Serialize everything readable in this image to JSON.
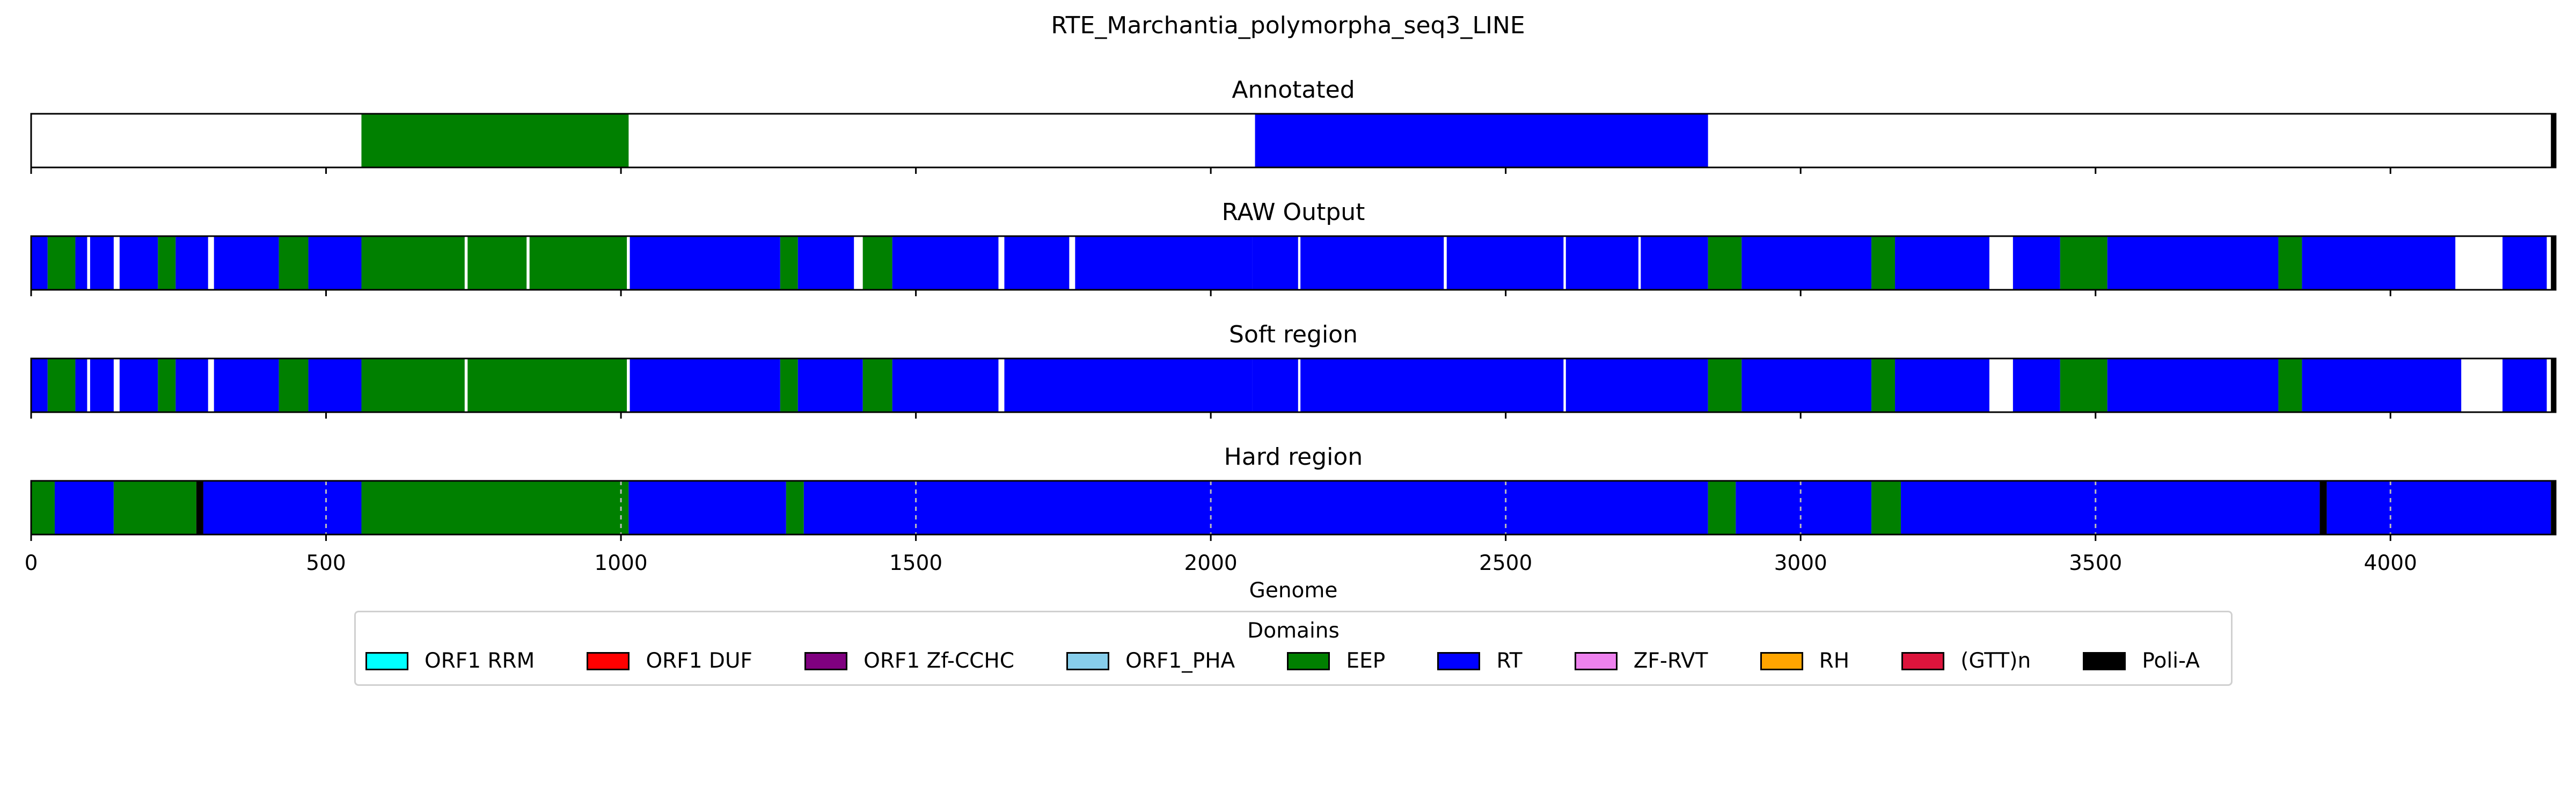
{
  "chart_data": {
    "type": "track",
    "title": "RTE_Marchantia_polymorpha_seq3_LINE",
    "xlabel": "Genome",
    "xlim": [
      0,
      4280
    ],
    "xticks": [
      0,
      500,
      1000,
      1500,
      2000,
      2500,
      3000,
      3500,
      4000
    ],
    "colors": {
      "ORF1 RRM": "#00ffff",
      "ORF1 DUF": "#ff0000",
      "ORF1 Zf-CCHC": "#800080",
      "ORF1_PHA": "#87ceeb",
      "EEP": "#008000",
      "RT": "#0000ff",
      "ZF-RVT": "#ee82ee",
      "RH": "#ffa500",
      "(GTT)n": "#dc143c",
      "Poli-A": "#000000"
    },
    "panels": [
      {
        "title": "Annotated",
        "segments": [
          {
            "start": 560,
            "end": 1013,
            "label": "EEP"
          },
          {
            "start": 2075,
            "end": 2843,
            "label": "RT"
          },
          {
            "start": 4272,
            "end": 4280,
            "label": "Poli-A"
          }
        ]
      },
      {
        "title": "RAW Output",
        "segments": [
          {
            "start": 0,
            "end": 28,
            "label": "RT"
          },
          {
            "start": 28,
            "end": 75,
            "label": "EEP"
          },
          {
            "start": 75,
            "end": 95,
            "label": "RT"
          },
          {
            "start": 100,
            "end": 140,
            "label": "RT"
          },
          {
            "start": 150,
            "end": 215,
            "label": "RT"
          },
          {
            "start": 215,
            "end": 245,
            "label": "EEP"
          },
          {
            "start": 245,
            "end": 300,
            "label": "RT"
          },
          {
            "start": 310,
            "end": 420,
            "label": "RT"
          },
          {
            "start": 420,
            "end": 470,
            "label": "EEP"
          },
          {
            "start": 470,
            "end": 560,
            "label": "RT"
          },
          {
            "start": 560,
            "end": 735,
            "label": "EEP"
          },
          {
            "start": 740,
            "end": 840,
            "label": "EEP"
          },
          {
            "start": 845,
            "end": 1010,
            "label": "EEP"
          },
          {
            "start": 1015,
            "end": 1270,
            "label": "RT"
          },
          {
            "start": 1270,
            "end": 1300,
            "label": "EEP"
          },
          {
            "start": 1300,
            "end": 1395,
            "label": "RT"
          },
          {
            "start": 1410,
            "end": 1460,
            "label": "EEP"
          },
          {
            "start": 1460,
            "end": 1640,
            "label": "RT"
          },
          {
            "start": 1650,
            "end": 1760,
            "label": "RT"
          },
          {
            "start": 1770,
            "end": 2070,
            "label": "RT"
          },
          {
            "start": 2070,
            "end": 2148,
            "label": "RT"
          },
          {
            "start": 2152,
            "end": 2395,
            "label": "RT"
          },
          {
            "start": 2400,
            "end": 2598,
            "label": "RT"
          },
          {
            "start": 2602,
            "end": 2725,
            "label": "RT"
          },
          {
            "start": 2729,
            "end": 2843,
            "label": "RT"
          },
          {
            "start": 2843,
            "end": 2900,
            "label": "EEP"
          },
          {
            "start": 2900,
            "end": 3120,
            "label": "RT"
          },
          {
            "start": 3120,
            "end": 3160,
            "label": "EEP"
          },
          {
            "start": 3160,
            "end": 3320,
            "label": "RT"
          },
          {
            "start": 3360,
            "end": 3440,
            "label": "RT"
          },
          {
            "start": 3440,
            "end": 3520,
            "label": "EEP"
          },
          {
            "start": 3520,
            "end": 3810,
            "label": "RT"
          },
          {
            "start": 3810,
            "end": 3850,
            "label": "EEP"
          },
          {
            "start": 3850,
            "end": 4110,
            "label": "RT"
          },
          {
            "start": 4190,
            "end": 4265,
            "label": "RT"
          },
          {
            "start": 4272,
            "end": 4280,
            "label": "Poli-A"
          }
        ]
      },
      {
        "title": "Soft region",
        "segments": [
          {
            "start": 0,
            "end": 28,
            "label": "RT"
          },
          {
            "start": 28,
            "end": 75,
            "label": "EEP"
          },
          {
            "start": 75,
            "end": 95,
            "label": "RT"
          },
          {
            "start": 100,
            "end": 140,
            "label": "RT"
          },
          {
            "start": 150,
            "end": 215,
            "label": "RT"
          },
          {
            "start": 215,
            "end": 245,
            "label": "EEP"
          },
          {
            "start": 245,
            "end": 300,
            "label": "RT"
          },
          {
            "start": 310,
            "end": 420,
            "label": "RT"
          },
          {
            "start": 420,
            "end": 470,
            "label": "EEP"
          },
          {
            "start": 470,
            "end": 560,
            "label": "RT"
          },
          {
            "start": 560,
            "end": 735,
            "label": "EEP"
          },
          {
            "start": 740,
            "end": 1010,
            "label": "EEP"
          },
          {
            "start": 1015,
            "end": 1270,
            "label": "RT"
          },
          {
            "start": 1270,
            "end": 1300,
            "label": "EEP"
          },
          {
            "start": 1300,
            "end": 1410,
            "label": "RT"
          },
          {
            "start": 1410,
            "end": 1460,
            "label": "EEP"
          },
          {
            "start": 1460,
            "end": 1640,
            "label": "RT"
          },
          {
            "start": 1650,
            "end": 2070,
            "label": "RT"
          },
          {
            "start": 2070,
            "end": 2148,
            "label": "RT"
          },
          {
            "start": 2152,
            "end": 2598,
            "label": "RT"
          },
          {
            "start": 2602,
            "end": 2843,
            "label": "RT"
          },
          {
            "start": 2843,
            "end": 2900,
            "label": "EEP"
          },
          {
            "start": 2900,
            "end": 3120,
            "label": "RT"
          },
          {
            "start": 3120,
            "end": 3160,
            "label": "EEP"
          },
          {
            "start": 3160,
            "end": 3320,
            "label": "RT"
          },
          {
            "start": 3360,
            "end": 3440,
            "label": "RT"
          },
          {
            "start": 3440,
            "end": 3520,
            "label": "EEP"
          },
          {
            "start": 3520,
            "end": 3810,
            "label": "RT"
          },
          {
            "start": 3810,
            "end": 3850,
            "label": "EEP"
          },
          {
            "start": 3850,
            "end": 4120,
            "label": "RT"
          },
          {
            "start": 4190,
            "end": 4265,
            "label": "RT"
          },
          {
            "start": 4272,
            "end": 4280,
            "label": "Poli-A"
          }
        ]
      },
      {
        "title": "Hard region",
        "segments": [
          {
            "start": 0,
            "end": 40,
            "label": "EEP"
          },
          {
            "start": 40,
            "end": 140,
            "label": "RT"
          },
          {
            "start": 140,
            "end": 280,
            "label": "EEP"
          },
          {
            "start": 280,
            "end": 292,
            "label": "Poli-A"
          },
          {
            "start": 292,
            "end": 560,
            "label": "RT"
          },
          {
            "start": 560,
            "end": 1013,
            "label": "EEP"
          },
          {
            "start": 1013,
            "end": 1280,
            "label": "RT"
          },
          {
            "start": 1280,
            "end": 1310,
            "label": "EEP"
          },
          {
            "start": 1310,
            "end": 2843,
            "label": "RT"
          },
          {
            "start": 2843,
            "end": 2890,
            "label": "EEP"
          },
          {
            "start": 2890,
            "end": 3120,
            "label": "RT"
          },
          {
            "start": 3120,
            "end": 3170,
            "label": "EEP"
          },
          {
            "start": 3170,
            "end": 3880,
            "label": "RT"
          },
          {
            "start": 3880,
            "end": 3892,
            "label": "Poli-A"
          },
          {
            "start": 3892,
            "end": 4272,
            "label": "RT"
          },
          {
            "start": 4272,
            "end": 4280,
            "label": "Poli-A"
          }
        ]
      }
    ]
  },
  "legend": {
    "title": "Domains",
    "items": [
      {
        "label": "ORF1 RRM",
        "color": "#00ffff"
      },
      {
        "label": "ORF1 DUF",
        "color": "#ff0000"
      },
      {
        "label": "ORF1 Zf-CCHC",
        "color": "#800080"
      },
      {
        "label": "ORF1_PHA",
        "color": "#87ceeb"
      },
      {
        "label": "EEP",
        "color": "#008000"
      },
      {
        "label": "RT",
        "color": "#0000ff"
      },
      {
        "label": "ZF-RVT",
        "color": "#ee82ee"
      },
      {
        "label": "RH",
        "color": "#ffa500"
      },
      {
        "label": "(GTT)n",
        "color": "#dc143c"
      },
      {
        "label": "Poli-A",
        "color": "#000000"
      }
    ]
  }
}
